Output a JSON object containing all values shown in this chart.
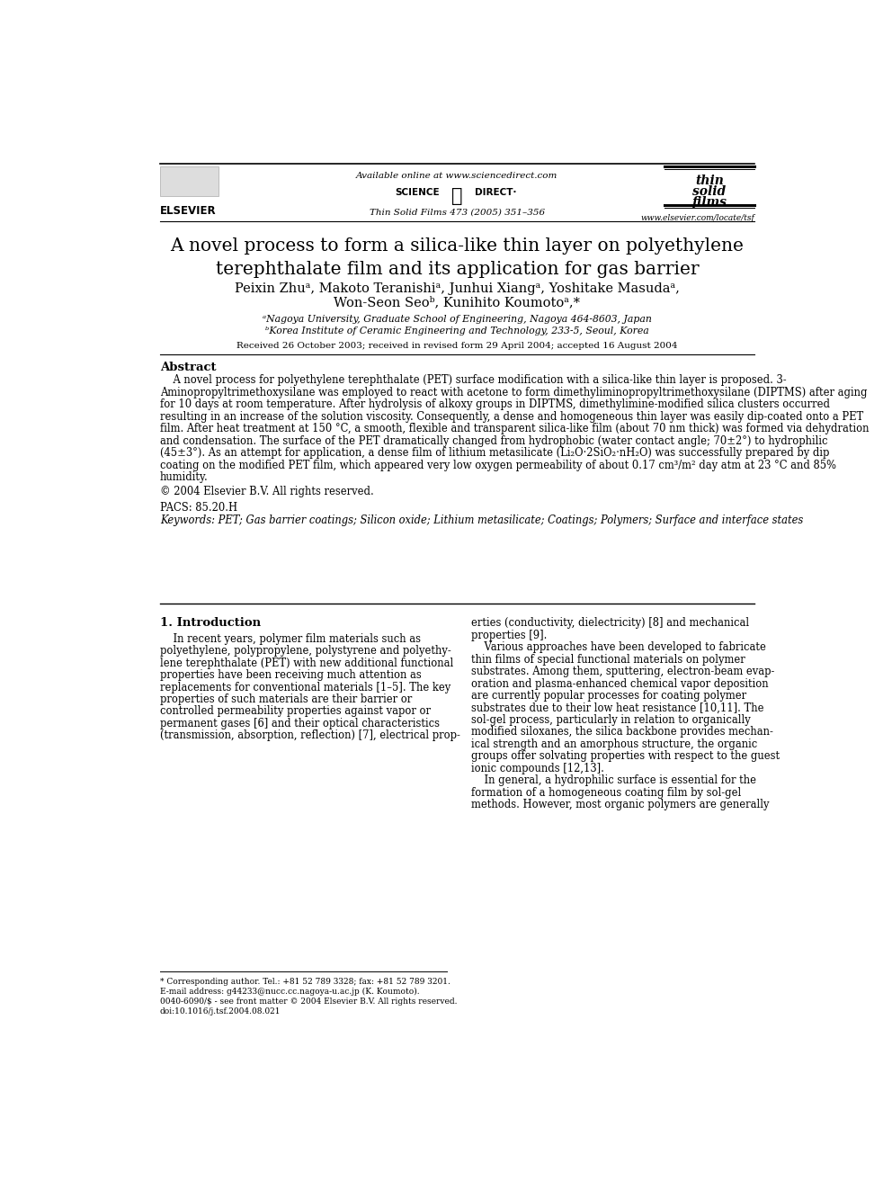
{
  "bg_color": "#ffffff",
  "page_width": 9.92,
  "page_height": 13.23,
  "header_available": "Available online at www.sciencedirect.com",
  "header_journal": "Thin Solid Films 473 (2005) 351–356",
  "header_website": "www.elsevier.com/locate/tsf",
  "title": "A novel process to form a silica-like thin layer on polyethylene\nterephthalate film and its application for gas barrier",
  "authors_line1": "Peixin Zhuᵃ, Makoto Teranishiᵃ, Junhui Xiangᵃ, Yoshitake Masudaᵃ,",
  "authors_line2": "Won-Seon Seoᵇ, Kunihito Koumotoᵃ,*",
  "affil_a": "ᵃNagoya University, Graduate School of Engineering, Nagoya 464-8603, Japan",
  "affil_b": "ᵇKorea Institute of Ceramic Engineering and Technology, 233-5, Seoul, Korea",
  "received": "Received 26 October 2003; received in revised form 29 April 2004; accepted 16 August 2004",
  "abstract_title": "Abstract",
  "copyright": "© 2004 Elsevier B.V. All rights reserved.",
  "pacs": "PACS: 85.20.H",
  "keywords": "Keywords: PET; Gas barrier coatings; Silicon oxide; Lithium metasilicate; Coatings; Polymers; Surface and interface states",
  "section1_title": "1. Introduction",
  "abstract_lines": [
    "    A novel process for polyethylene terephthalate (PET) surface modification with a silica-like thin layer is proposed. 3-",
    "Aminopropyltrimethoxysilane was employed to react with acetone to form dimethyliminopropyltrimethoxysilane (DIPTMS) after aging",
    "for 10 days at room temperature. After hydrolysis of alkoxy groups in DIPTMS, dimethylimine-modified silica clusters occurred",
    "resulting in an increase of the solution viscosity. Consequently, a dense and homogeneous thin layer was easily dip-coated onto a PET",
    "film. After heat treatment at 150 °C, a smooth, flexible and transparent silica-like film (about 70 nm thick) was formed via dehydration",
    "and condensation. The surface of the PET dramatically changed from hydrophobic (water contact angle; 70±2°) to hydrophilic",
    "(45±3°). As an attempt for application, a dense film of lithium metasilicate (Li₂O·2SiO₂·nH₂O) was successfully prepared by dip",
    "coating on the modified PET film, which appeared very low oxygen permeability of about 0.17 cm³/m² day atm at 23 °C and 85%",
    "humidity."
  ],
  "intro_col1_lines": [
    "    In recent years, polymer film materials such as",
    "polyethylene, polypropylene, polystyrene and polyethy-",
    "lene terephthalate (PET) with new additional functional",
    "properties have been receiving much attention as",
    "replacements for conventional materials [1–5]. The key",
    "properties of such materials are their barrier or",
    "controlled permeability properties against vapor or",
    "permanent gases [6] and their optical characteristics",
    "(transmission, absorption, reflection) [7], electrical prop-"
  ],
  "intro_col2_lines": [
    "erties (conductivity, dielectricity) [8] and mechanical",
    "properties [9].",
    "    Various approaches have been developed to fabricate",
    "thin films of special functional materials on polymer",
    "substrates. Among them, sputtering, electron-beam evap-",
    "oration and plasma-enhanced chemical vapor deposition",
    "are currently popular processes for coating polymer",
    "substrates due to their low heat resistance [10,11]. The",
    "sol-gel process, particularly in relation to organically",
    "modified siloxanes, the silica backbone provides mechan-",
    "ical strength and an amorphous structure, the organic",
    "groups offer solvating properties with respect to the guest",
    "ionic compounds [12,13].",
    "    In general, a hydrophilic surface is essential for the",
    "formation of a homogeneous coating film by sol-gel",
    "methods. However, most organic polymers are generally"
  ],
  "footnote_star": "* Corresponding author. Tel.: +81 52 789 3328; fax: +81 52 789 3201.",
  "footnote_email": "E-mail address: g44233@nucc.cc.nagoya-u.ac.jp (K. Koumoto).",
  "footnote_issn": "0040-6090/$ - see front matter © 2004 Elsevier B.V. All rights reserved.",
  "footnote_doi": "doi:10.1016/j.tsf.2004.08.021"
}
